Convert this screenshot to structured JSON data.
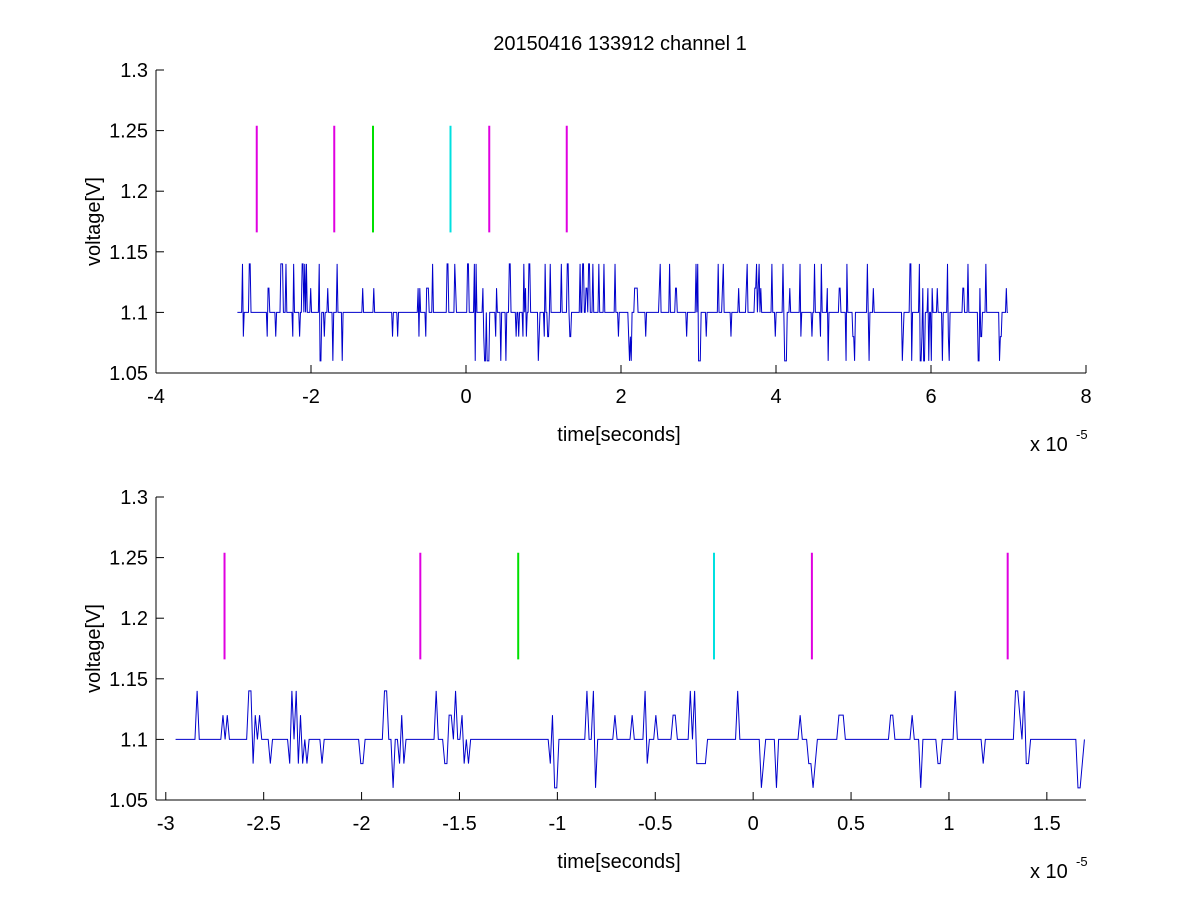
{
  "figure": {
    "title": "20150416 133912 channel 1"
  },
  "chart_data": [
    {
      "type": "line",
      "title": "20150416 133912 channel 1",
      "xlabel": "time[seconds]",
      "ylabel": "voltage[V]",
      "x_exponent_label": "x 10",
      "x_exponent_power": "-5",
      "x_scale": 1e-05,
      "xlim": [
        -4,
        8
      ],
      "ylim": [
        1.05,
        1.3
      ],
      "xticks": [
        -4,
        -2,
        0,
        2,
        4,
        6,
        8
      ],
      "yticks": [
        1.05,
        1.1,
        1.15,
        1.2,
        1.25,
        1.3
      ],
      "xtick_labels": [
        "-4",
        "-2",
        "0",
        "2",
        "4",
        "6",
        "8"
      ],
      "ytick_labels": [
        "1.05",
        "1.1",
        "1.15",
        "1.2",
        "1.25",
        "1.3"
      ],
      "signal": {
        "color": "#0000cc",
        "levels": [
          1.06,
          1.08,
          1.1,
          1.12,
          1.14
        ],
        "baseline": 1.1,
        "x_range": [
          -2.95,
          7.0
        ],
        "seed": 4159
      },
      "markers": [
        {
          "x": -2.7,
          "y_from": 1.166,
          "y_to": 1.254,
          "color": "#e000e0"
        },
        {
          "x": -1.7,
          "y_from": 1.166,
          "y_to": 1.254,
          "color": "#e000e0"
        },
        {
          "x": -1.2,
          "y_from": 1.166,
          "y_to": 1.254,
          "color": "#00e000"
        },
        {
          "x": -0.2,
          "y_from": 1.166,
          "y_to": 1.254,
          "color": "#00e0e0"
        },
        {
          "x": 0.3,
          "y_from": 1.166,
          "y_to": 1.254,
          "color": "#e000e0"
        },
        {
          "x": 1.3,
          "y_from": 1.166,
          "y_to": 1.254,
          "color": "#e000e0"
        }
      ]
    },
    {
      "type": "line",
      "title": "",
      "xlabel": "time[seconds]",
      "ylabel": "voltage[V]",
      "x_exponent_label": "x 10",
      "x_exponent_power": "-5",
      "x_scale": 1e-05,
      "xlim": [
        -3.05,
        1.7
      ],
      "ylim": [
        1.05,
        1.3
      ],
      "xticks": [
        -3,
        -2.5,
        -2,
        -1.5,
        -1,
        -0.5,
        0,
        0.5,
        1,
        1.5
      ],
      "yticks": [
        1.05,
        1.1,
        1.15,
        1.2,
        1.25,
        1.3
      ],
      "xtick_labels": [
        "-3",
        "-2.5",
        "-2",
        "-1.5",
        "-1",
        "-0.5",
        "0",
        "0.5",
        "1",
        "1.5"
      ],
      "ytick_labels": [
        "1.05",
        "1.1",
        "1.15",
        "1.2",
        "1.25",
        "1.3"
      ],
      "signal": {
        "color": "#0000cc",
        "levels": [
          1.06,
          1.08,
          1.1,
          1.12,
          1.14
        ],
        "baseline": 1.1,
        "x_range": [
          -2.95,
          1.7
        ],
        "seed": 2718
      },
      "markers": [
        {
          "x": -2.7,
          "y_from": 1.166,
          "y_to": 1.254,
          "color": "#e000e0"
        },
        {
          "x": -1.7,
          "y_from": 1.166,
          "y_to": 1.254,
          "color": "#e000e0"
        },
        {
          "x": -1.2,
          "y_from": 1.166,
          "y_to": 1.254,
          "color": "#00e000"
        },
        {
          "x": -0.2,
          "y_from": 1.166,
          "y_to": 1.254,
          "color": "#00e0e0"
        },
        {
          "x": 0.3,
          "y_from": 1.166,
          "y_to": 1.254,
          "color": "#e000e0"
        },
        {
          "x": 1.3,
          "y_from": 1.166,
          "y_to": 1.254,
          "color": "#e000e0"
        }
      ]
    }
  ]
}
